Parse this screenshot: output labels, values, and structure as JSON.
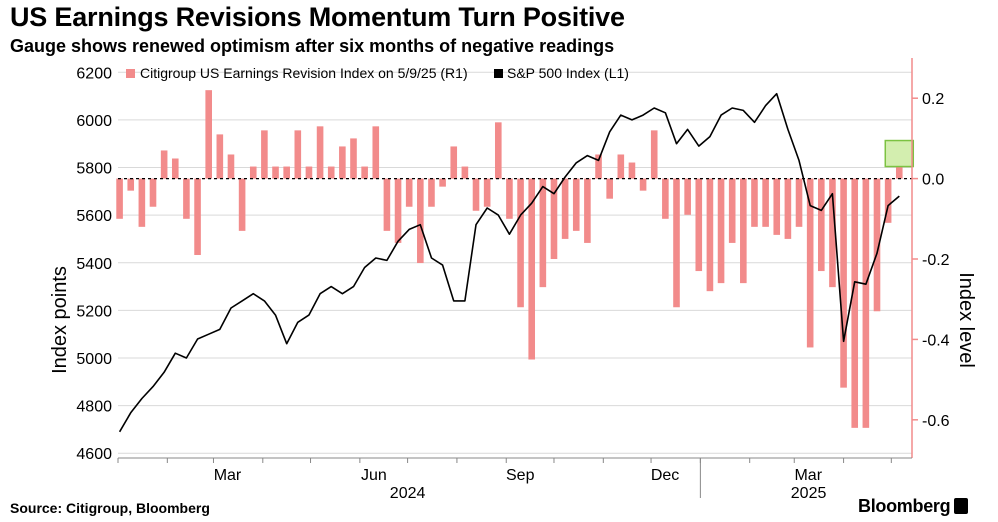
{
  "header": {
    "title": "US Earnings Revisions Momentum Turn Positive",
    "subtitle": "Gauge shows renewed optimism after six months of negative readings"
  },
  "footer": {
    "source": "Source: Citigroup, Bloomberg",
    "brand": "Bloomberg"
  },
  "colors": {
    "bar": "#f28b8b",
    "line": "#000000",
    "highlight_fill": "#b5e27a",
    "highlight_stroke": "#7cc242",
    "grid": "#d9d9d9"
  },
  "chart_data": {
    "type": "bar+line",
    "legend": [
      {
        "name": "Citigroup US Earnings Revision Index on 5/9/25 (R1)",
        "color": "#f28b8b",
        "placement": "top-left"
      },
      {
        "name": "S&P 500 Index (L1)",
        "color": "#000000"
      }
    ],
    "y_left": {
      "label": "Index points",
      "ticks": [
        4600,
        4800,
        5000,
        5200,
        5400,
        5600,
        5800,
        6000,
        6200
      ],
      "range": [
        4580,
        6260
      ]
    },
    "y_right": {
      "label": "Index level",
      "ticks": [
        0.2,
        0.0,
        -0.2,
        -0.4,
        -0.6
      ],
      "tick_labels": [
        "0.2",
        "0.0",
        "-0.2",
        "-0.4",
        "-0.6"
      ],
      "range": [
        -0.695,
        0.3
      ]
    },
    "x_axis": {
      "start": "2024-01-01",
      "end": "2025-05-14",
      "months": [
        {
          "label": "Mar",
          "date": "2024-03-01"
        },
        {
          "label": "Jun",
          "date": "2024-06-01"
        },
        {
          "label": "Sep",
          "date": "2024-09-01"
        },
        {
          "label": "Dec",
          "date": "2024-12-01"
        },
        {
          "label": "Mar",
          "date": "2025-03-01"
        }
      ],
      "years": [
        {
          "label": "2024",
          "date": "2024-07-01"
        },
        {
          "label": "2025",
          "date": "2025-03-10"
        }
      ]
    },
    "revision_index": {
      "dates": [
        "2024-01-02",
        "2024-01-09",
        "2024-01-16",
        "2024-01-23",
        "2024-01-30",
        "2024-02-06",
        "2024-02-13",
        "2024-02-20",
        "2024-02-27",
        "2024-03-05",
        "2024-03-12",
        "2024-03-19",
        "2024-03-26",
        "2024-04-02",
        "2024-04-09",
        "2024-04-16",
        "2024-04-23",
        "2024-04-30",
        "2024-05-07",
        "2024-05-14",
        "2024-05-21",
        "2024-05-28",
        "2024-06-04",
        "2024-06-11",
        "2024-06-18",
        "2024-06-25",
        "2024-07-02",
        "2024-07-09",
        "2024-07-16",
        "2024-07-23",
        "2024-07-30",
        "2024-08-06",
        "2024-08-13",
        "2024-08-20",
        "2024-08-27",
        "2024-09-03",
        "2024-09-10",
        "2024-09-17",
        "2024-09-24",
        "2024-10-01",
        "2024-10-08",
        "2024-10-15",
        "2024-10-22",
        "2024-10-29",
        "2024-11-05",
        "2024-11-12",
        "2024-11-19",
        "2024-11-26",
        "2024-12-03",
        "2024-12-10",
        "2024-12-17",
        "2024-12-24",
        "2024-12-31",
        "2025-01-07",
        "2025-01-14",
        "2025-01-21",
        "2025-01-28",
        "2025-02-04",
        "2025-02-11",
        "2025-02-18",
        "2025-02-25",
        "2025-03-04",
        "2025-03-11",
        "2025-03-18",
        "2025-03-25",
        "2025-04-01",
        "2025-04-08",
        "2025-04-15",
        "2025-04-22",
        "2025-04-29",
        "2025-05-06"
      ],
      "values": [
        -0.1,
        -0.03,
        -0.12,
        -0.07,
        0.07,
        0.05,
        -0.1,
        -0.19,
        0.22,
        0.11,
        0.06,
        -0.13,
        0.03,
        0.12,
        0.03,
        0.03,
        0.12,
        0.03,
        0.13,
        0.03,
        0.08,
        0.1,
        0.03,
        0.13,
        -0.13,
        -0.16,
        -0.07,
        -0.21,
        -0.07,
        -0.02,
        0.08,
        0.03,
        -0.08,
        -0.07,
        0.14,
        -0.1,
        -0.32,
        -0.45,
        -0.27,
        -0.2,
        -0.15,
        -0.13,
        -0.16,
        0.06,
        -0.05,
        0.06,
        0.04,
        -0.03,
        0.12,
        -0.1,
        -0.32,
        -0.09,
        -0.23,
        -0.28,
        -0.26,
        -0.16,
        -0.26,
        -0.12,
        -0.12,
        -0.14,
        -0.15,
        -0.12,
        -0.42,
        -0.23,
        -0.27,
        -0.52,
        -0.62,
        -0.62,
        -0.33,
        -0.11,
        0.03
      ]
    },
    "sp500": {
      "dates": [
        "2024-01-02",
        "2024-01-09",
        "2024-01-16",
        "2024-01-23",
        "2024-01-30",
        "2024-02-06",
        "2024-02-13",
        "2024-02-20",
        "2024-02-27",
        "2024-03-05",
        "2024-03-12",
        "2024-03-19",
        "2024-03-26",
        "2024-04-02",
        "2024-04-09",
        "2024-04-16",
        "2024-04-23",
        "2024-04-30",
        "2024-05-07",
        "2024-05-14",
        "2024-05-21",
        "2024-05-28",
        "2024-06-04",
        "2024-06-11",
        "2024-06-18",
        "2024-06-25",
        "2024-07-02",
        "2024-07-09",
        "2024-07-16",
        "2024-07-23",
        "2024-07-30",
        "2024-08-06",
        "2024-08-13",
        "2024-08-20",
        "2024-08-27",
        "2024-09-03",
        "2024-09-10",
        "2024-09-17",
        "2024-09-24",
        "2024-10-01",
        "2024-10-08",
        "2024-10-15",
        "2024-10-22",
        "2024-10-29",
        "2024-11-05",
        "2024-11-12",
        "2024-11-19",
        "2024-11-26",
        "2024-12-03",
        "2024-12-10",
        "2024-12-17",
        "2024-12-24",
        "2024-12-31",
        "2025-01-07",
        "2025-01-14",
        "2025-01-21",
        "2025-01-28",
        "2025-02-04",
        "2025-02-11",
        "2025-02-18",
        "2025-02-25",
        "2025-03-04",
        "2025-03-11",
        "2025-03-18",
        "2025-03-25",
        "2025-04-01",
        "2025-04-08",
        "2025-04-15",
        "2025-04-22",
        "2025-04-29",
        "2025-05-06"
      ],
      "values": [
        4690,
        4770,
        4830,
        4880,
        4940,
        5020,
        5000,
        5080,
        5100,
        5120,
        5210,
        5240,
        5270,
        5240,
        5180,
        5060,
        5150,
        5180,
        5270,
        5300,
        5270,
        5300,
        5380,
        5420,
        5410,
        5490,
        5540,
        5560,
        5420,
        5390,
        5240,
        5240,
        5560,
        5630,
        5600,
        5520,
        5600,
        5650,
        5720,
        5690,
        5760,
        5820,
        5850,
        5830,
        5950,
        6020,
        6000,
        6020,
        6050,
        6030,
        5900,
        5960,
        5890,
        5930,
        6020,
        6050,
        6040,
        5990,
        6060,
        6110,
        5960,
        5830,
        5640,
        5620,
        5690,
        5070,
        5320,
        5310,
        5440,
        5640,
        5680
      ]
    },
    "highlight": {
      "date": "2025-05-06",
      "value": 0.03
    }
  }
}
